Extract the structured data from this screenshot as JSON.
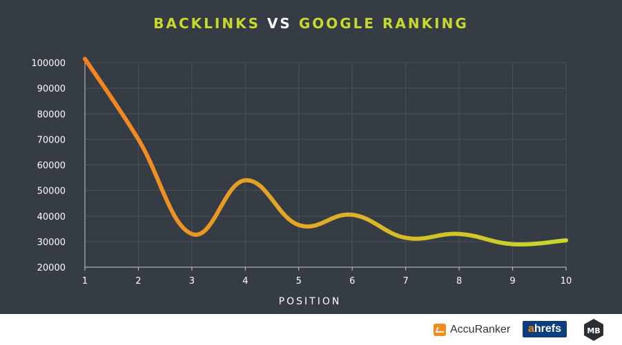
{
  "title": {
    "part1": "BACKLINKS",
    "part2": "VS",
    "part3": "GOOGLE RANKING"
  },
  "chart_data": {
    "type": "line",
    "title": "BACKLINKS VS GOOGLE RANKING",
    "xlabel": "POSITION",
    "ylabel": "",
    "x": [
      1,
      2,
      3,
      4,
      5,
      6,
      7,
      8,
      9,
      10
    ],
    "series": [
      {
        "values": [
          101500,
          70000,
          33000,
          54000,
          36500,
          40500,
          31500,
          33000,
          29000,
          30500
        ]
      }
    ],
    "xlim": [
      1,
      10
    ],
    "ylim": [
      20000,
      100000
    ],
    "yticks": [
      20000,
      30000,
      40000,
      50000,
      60000,
      70000,
      80000,
      90000,
      100000
    ],
    "xticks": [
      1,
      2,
      3,
      4,
      5,
      6,
      7,
      8,
      9,
      10
    ],
    "grid": true,
    "colors": {
      "line_start": "#f58220",
      "line_end": "#c7d92b",
      "background": "#363c44",
      "grid": "#4a5058",
      "text": "#ffffff"
    }
  },
  "footer": {
    "accuranker": "AccuRanker",
    "ahrefs_a": "a",
    "ahrefs_rest": "hrefs",
    "mb": "MB"
  }
}
